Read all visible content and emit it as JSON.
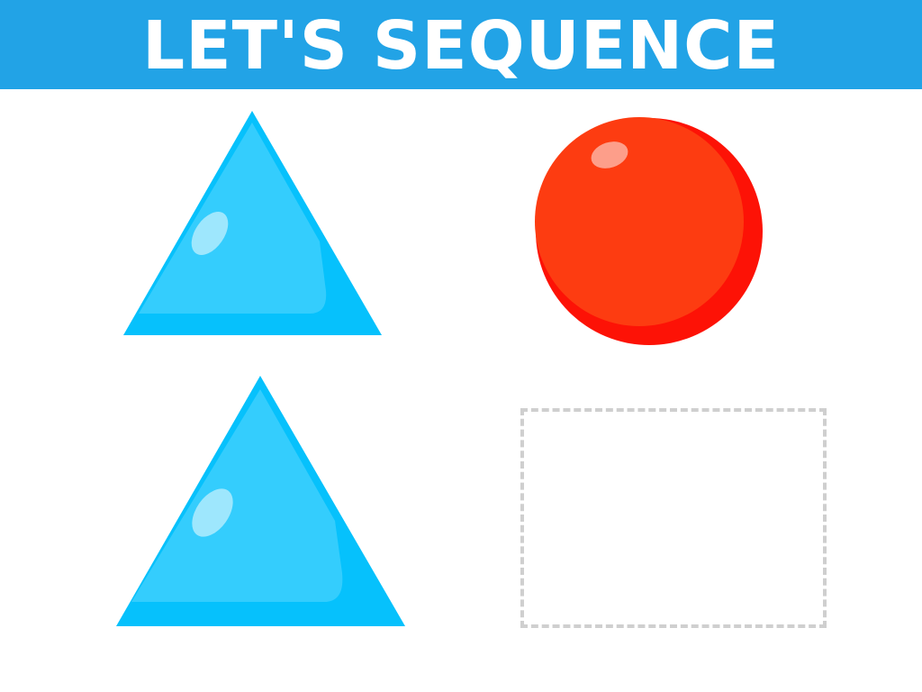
{
  "header": {
    "title": "LET'S SEQUENCE",
    "background_color": "#22a3e6",
    "text_color": "#ffffff"
  },
  "sequence": [
    {
      "shape": "triangle",
      "color": "#34cdfd",
      "shade_color": "#06c1fc"
    },
    {
      "shape": "circle",
      "color": "#fd3c11",
      "shade_color": "#fd1206"
    },
    {
      "shape": "triangle",
      "color": "#34cdfd",
      "shade_color": "#06c1fc"
    }
  ],
  "answer_slot": {
    "state": "empty",
    "border_color": "#cfcfcf"
  }
}
